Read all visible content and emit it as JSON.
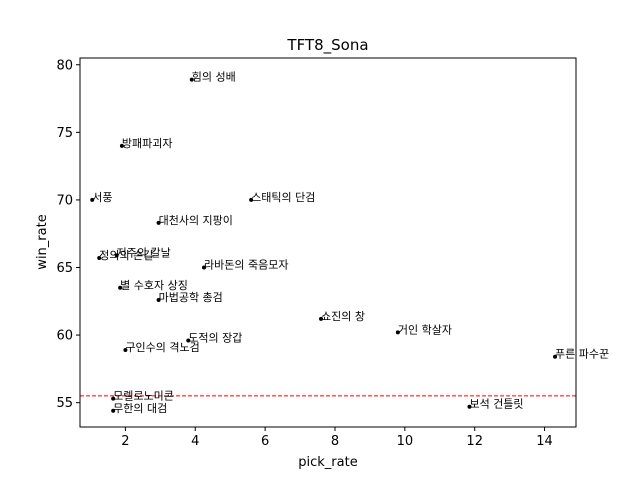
{
  "chart_data": {
    "type": "scatter",
    "title": "TFT8_Sona",
    "xlabel": "pick_rate",
    "ylabel": "win_rate",
    "xlim": [
      0.7,
      14.9
    ],
    "ylim": [
      53.2,
      80.5
    ],
    "xticks": [
      2,
      4,
      6,
      8,
      10,
      12,
      14
    ],
    "yticks": [
      55,
      60,
      65,
      70,
      75,
      80
    ],
    "grid": false,
    "point_color": "#000000",
    "reference_line": {
      "y": 55.5,
      "color": "#ff0000",
      "style": "dashed"
    },
    "points": [
      {
        "label": "힘의 성배",
        "x": 3.9,
        "y": 78.9
      },
      {
        "label": "방패파괴자",
        "x": 1.9,
        "y": 74.0
      },
      {
        "label": "서풍",
        "x": 1.05,
        "y": 70.0
      },
      {
        "label": "스태틱의 단검",
        "x": 5.6,
        "y": 70.0
      },
      {
        "label": "대천사의 지팡이",
        "x": 2.95,
        "y": 68.3
      },
      {
        "label": "정의의 손길",
        "x": 1.25,
        "y": 65.7
      },
      {
        "label": "저주의 칼날",
        "x": 1.75,
        "y": 65.9
      },
      {
        "label": "라바돈의 죽음모자",
        "x": 4.25,
        "y": 65.0
      },
      {
        "label": "별 수호자 상징",
        "x": 1.85,
        "y": 63.5
      },
      {
        "label": "마법공학 총검",
        "x": 2.95,
        "y": 62.6
      },
      {
        "label": "쇼진의 창",
        "x": 7.6,
        "y": 61.2
      },
      {
        "label": "거인 학살자",
        "x": 9.8,
        "y": 60.2
      },
      {
        "label": "도적의 장갑",
        "x": 3.8,
        "y": 59.6
      },
      {
        "label": "구인수의 격노검",
        "x": 2.0,
        "y": 58.9
      },
      {
        "label": "푸른 파수꾼",
        "x": 14.3,
        "y": 58.4
      },
      {
        "label": "모렐로노미콘",
        "x": 1.65,
        "y": 55.3
      },
      {
        "label": "무한의 대검",
        "x": 1.65,
        "y": 54.4
      },
      {
        "label": "보석 건틀릿",
        "x": 11.85,
        "y": 54.7
      }
    ]
  }
}
